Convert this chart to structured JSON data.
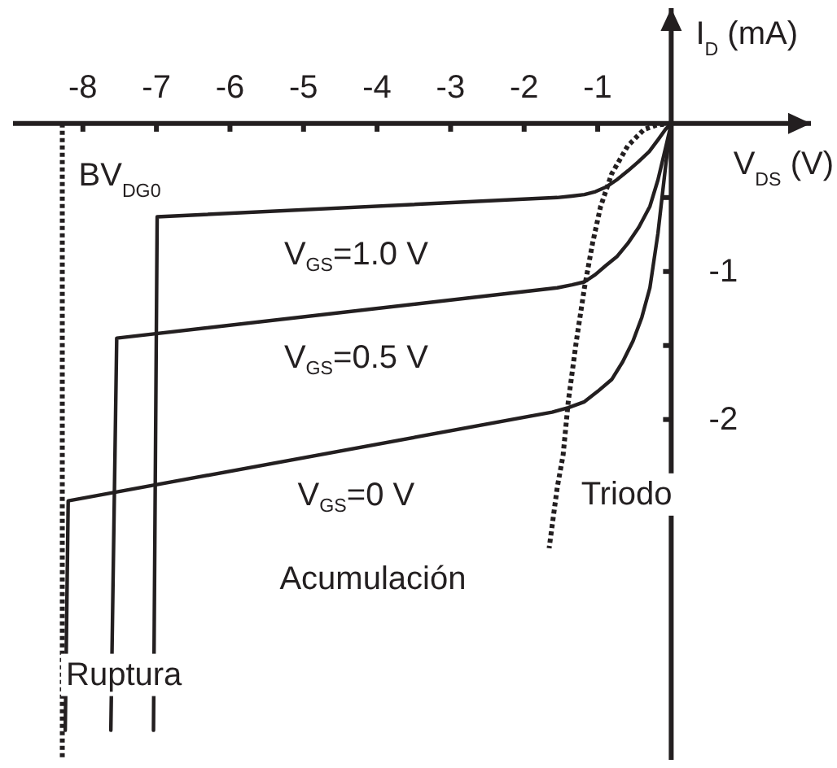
{
  "chart_data": {
    "type": "line",
    "xlabel": "V$_{DS}$ (V)",
    "ylabel": "I$_{D}$ (mA)",
    "xlim": [
      -8.95,
      1.9
    ],
    "ylim": [
      -4.3,
      0.78
    ],
    "xticks": [
      -8,
      -7,
      -6,
      -5,
      -4,
      -3,
      -2,
      -1
    ],
    "yticks": [
      {
        "value": -0.5,
        "label": null
      },
      -1,
      {
        "value": -1.5,
        "label": null
      },
      -2
    ],
    "line_style": "solid",
    "series": [
      {
        "name": "V$_{GS}$=1.0 V",
        "color": "#231f20",
        "x": [
          0,
          -0.08,
          -0.18,
          -0.3,
          -0.45,
          -0.59,
          -0.74,
          -0.89,
          -1.03,
          -1.18,
          -1.35,
          -1.55,
          -6.99,
          -7.04
        ],
        "values": [
          0,
          -0.04,
          -0.11,
          -0.19,
          -0.26,
          -0.32,
          -0.38,
          -0.43,
          -0.46,
          -0.48,
          -0.49,
          -0.5,
          -0.63,
          -4.1
        ]
      },
      {
        "name": "V$_{GS}$=0.5 V",
        "color": "#231f20",
        "x": [
          0,
          -0.07,
          -0.18,
          -0.29,
          -0.44,
          -0.59,
          -0.74,
          -0.89,
          -1.03,
          -1.18,
          -1.35,
          -1.55,
          -7.54,
          -7.62
        ],
        "values": [
          0,
          -0.15,
          -0.38,
          -0.56,
          -0.7,
          -0.81,
          -0.9,
          -0.96,
          -1.02,
          -1.07,
          -1.09,
          -1.11,
          -1.45,
          -4.1
        ]
      },
      {
        "name": "V$_{GS}$=0 V",
        "color": "#231f20",
        "x": [
          0,
          -0.07,
          -0.18,
          -0.29,
          -0.4,
          -0.52,
          -0.66,
          -0.81,
          -1.0,
          -1.18,
          -1.4,
          -1.62,
          -8.2,
          -8.24
        ],
        "values": [
          0,
          -0.26,
          -0.74,
          -1.11,
          -1.31,
          -1.47,
          -1.61,
          -1.73,
          -1.81,
          -1.88,
          -1.92,
          -1.95,
          -2.55,
          -4.1
        ]
      },
      {
        "color": "#231f20",
        "line_style": "dotted",
        "x": [
          0,
          -0.2,
          -0.37,
          -0.59,
          -0.81,
          -0.96,
          -1.07,
          -1.18,
          -1.29,
          -1.4,
          -1.47,
          -1.55,
          -1.66
        ],
        "values": [
          0,
          -0.01,
          -0.04,
          -0.15,
          -0.34,
          -0.56,
          -0.81,
          -1.11,
          -1.47,
          -1.88,
          -2.24,
          -2.46,
          -2.87
        ]
      }
    ],
    "ref_lines": [
      {
        "axis": "x",
        "value": -8.28,
        "label": "BV$_{DG0}$",
        "line_style": "dotted",
        "color": "#231f20"
      }
    ],
    "annotations": [
      "Triodo",
      "Acumulación",
      "Ruptura"
    ]
  }
}
